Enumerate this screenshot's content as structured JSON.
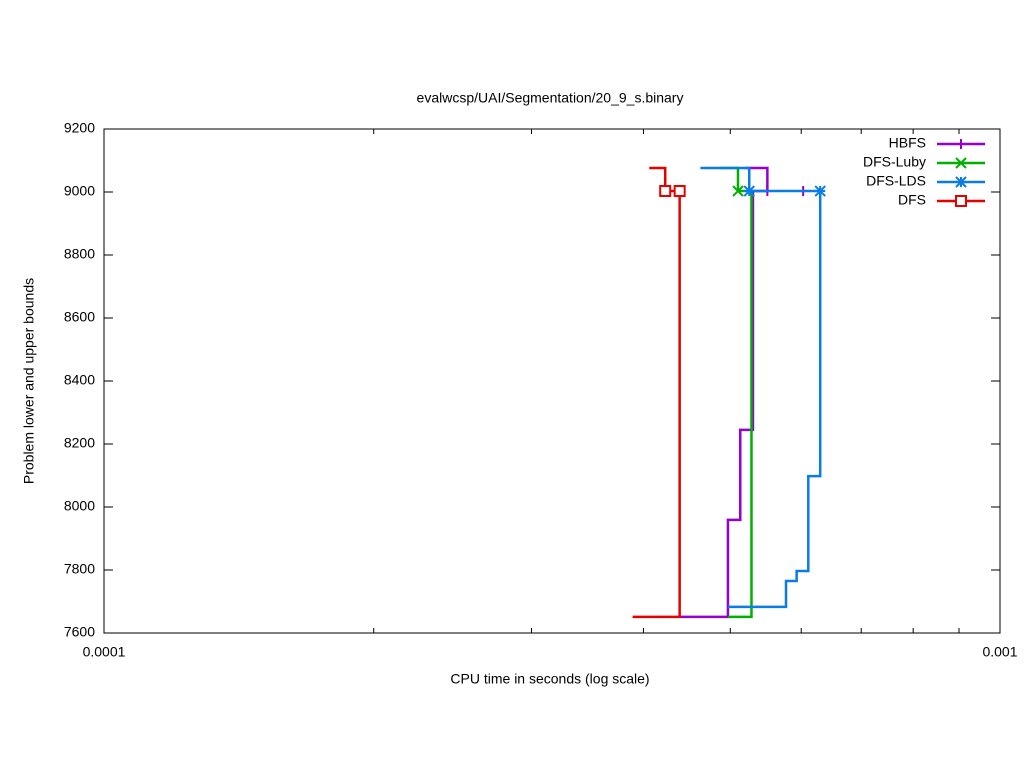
{
  "chart_data": {
    "type": "line",
    "title": "evalwcsp/UAI/Segmentation/20_9_s.binary",
    "xlabel": "CPU time in seconds (log scale)",
    "ylabel": "Problem lower and upper bounds",
    "xlog": true,
    "xlim": [
      0.0001,
      0.001
    ],
    "xticks": [
      {
        "value": 0.0001,
        "label": "0.0001"
      },
      {
        "value": 0.001,
        "label": "0.001"
      }
    ],
    "xminorticks": [
      0.0002,
      0.0003,
      0.0004,
      0.0005,
      0.0006,
      0.0007,
      0.0008,
      0.0009
    ],
    "ylim": [
      7600,
      9200
    ],
    "yticks": [
      7600,
      7800,
      8000,
      8200,
      8400,
      8600,
      8800,
      9000,
      9200
    ],
    "grid": false,
    "legend": "top-right",
    "series": [
      {
        "name": "HBFS",
        "color": "#9400d3",
        "marker": "plus",
        "x": [
          0.000439,
          0.000497,
          0.000497,
          0.000513,
          0.000513,
          0.00053,
          0.00053,
          0.00055,
          0.00055,
          0.000519
        ],
        "values": [
          7651,
          7651,
          7959,
          7959,
          8245,
          8245,
          9003,
          9003,
          9076,
          9076
        ],
        "marker_x": [
          0.00055,
          0.000603
        ],
        "marker_values": [
          9003,
          9003
        ]
      },
      {
        "name": "DFS-Luby",
        "color": "#00b000",
        "marker": "cross",
        "x": [
          0.000487,
          0.00051,
          0.00051,
          0.000528,
          0.000528,
          0.000497
        ],
        "values": [
          9076,
          9076,
          9003,
          9003,
          7651,
          7651
        ],
        "marker_x": [
          0.00051
        ],
        "marker_values": [
          9003
        ]
      },
      {
        "name": "DFS-LDS",
        "color": "#0a7ce6",
        "marker": "star",
        "x": [
          0.000463,
          0.000525,
          0.000525,
          0.00063,
          0.00063,
          0.000611,
          0.000611,
          0.000593,
          0.000593,
          0.000577,
          0.000577,
          0.000497
        ],
        "values": [
          9076,
          9076,
          9003,
          9003,
          8098,
          8098,
          7797,
          7797,
          7765,
          7765,
          7683,
          7683
        ],
        "marker_x": [
          0.000525,
          0.00063
        ],
        "marker_values": [
          9003,
          9003
        ]
      },
      {
        "name": "DFS",
        "color": "#e60000",
        "marker": "square",
        "x": [
          0.000406,
          0.000423,
          0.000423,
          0.000439,
          0.000439,
          0.000389
        ],
        "values": [
          9076,
          9076,
          9003,
          9003,
          7651,
          7651
        ],
        "marker_x": [
          0.000423,
          0.000439
        ],
        "marker_values": [
          9003,
          9003
        ]
      }
    ]
  }
}
